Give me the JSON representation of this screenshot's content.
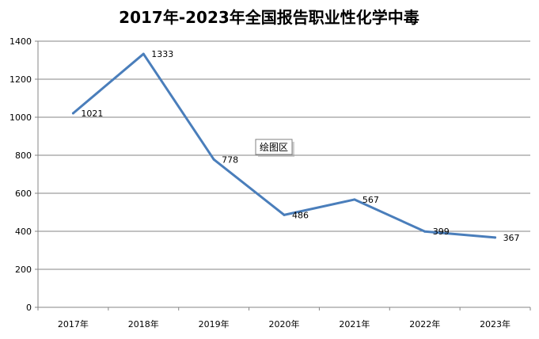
{
  "chart_data": {
    "type": "line",
    "title": "2017年-2023年全国报告职业性化学中毒",
    "categories": [
      "2017年",
      "2018年",
      "2019年",
      "2020年",
      "2021年",
      "2022年",
      "2023年"
    ],
    "series": [
      {
        "values": [
          1021,
          1333,
          778,
          486,
          567,
          399,
          367
        ],
        "color": "#4a7ebb"
      }
    ],
    "ylim": [
      0,
      1400
    ],
    "yticks": [
      0,
      200,
      400,
      600,
      800,
      1000,
      1200,
      1400
    ],
    "grid": true,
    "legend": "none"
  },
  "tooltip": {
    "label": "绘图区"
  }
}
